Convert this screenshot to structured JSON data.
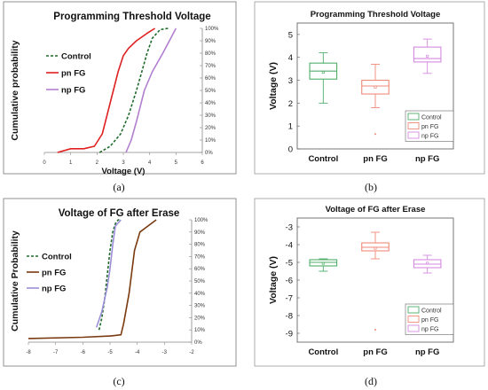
{
  "captions": [
    "(a)",
    "(b)",
    "(c)",
    "(d)"
  ],
  "colors": {
    "control": "#1f6b2c",
    "pn_fg_a": "#e02020",
    "np_fg": "#b27fd0",
    "pn_fg_c": "#7a3a10",
    "np_fg_c": "#9b8fd8",
    "box_control": "#4fae6a",
    "box_pn": "#f08a78",
    "box_np": "#d48ae0"
  },
  "chart_data": [
    {
      "id": "a",
      "type": "line",
      "title": "Programming Threshold Voltage",
      "xlabel": "Voltage (V)",
      "ylabel": "Cumulative probability",
      "xlim": [
        0,
        6
      ],
      "ylim": [
        0,
        100
      ],
      "x_ticks": [
        "0",
        "1",
        "2",
        "3",
        "4",
        "5",
        "6"
      ],
      "y_ticks": [
        "0%",
        "10%",
        "20%",
        "30%",
        "40%",
        "50%",
        "60%",
        "70%",
        "80%",
        "90%",
        "100%"
      ],
      "legend": "top-left",
      "series": [
        {
          "name": "Control",
          "style": "dashed",
          "x": [
            2.1,
            2.5,
            2.9,
            3.2,
            3.5,
            3.7,
            3.9,
            4.1,
            4.4,
            4.7
          ],
          "y": [
            0,
            5,
            15,
            30,
            50,
            65,
            80,
            92,
            99,
            100
          ]
        },
        {
          "name": "pn FG",
          "style": "solid",
          "x": [
            0.5,
            1.0,
            1.5,
            1.9,
            2.2,
            2.5,
            2.8,
            3.0,
            3.2,
            3.5,
            3.9,
            4.2
          ],
          "y": [
            0,
            3,
            3,
            5,
            15,
            40,
            65,
            78,
            84,
            90,
            96,
            100
          ]
        },
        {
          "name": "np FG",
          "style": "solid",
          "x": [
            3.1,
            3.3,
            3.5,
            3.8,
            4.1,
            4.5,
            4.8,
            5.0
          ],
          "y": [
            0,
            10,
            25,
            50,
            65,
            80,
            92,
            100
          ]
        }
      ]
    },
    {
      "id": "b",
      "type": "box",
      "title": "Programming Threshold Voltage",
      "xlabel": "",
      "ylabel": "Voltage (V)",
      "ylim": [
        0,
        5.5
      ],
      "y_ticks": [
        "0",
        "1",
        "2",
        "3",
        "4",
        "5"
      ],
      "categories": [
        "Control",
        "pn FG",
        "np FG"
      ],
      "legend": "bottom-right",
      "boxes": [
        {
          "name": "Control",
          "min": 2.0,
          "q1": 3.05,
          "median": 3.4,
          "mean": 3.35,
          "q3": 3.75,
          "max": 4.2,
          "outliers": []
        },
        {
          "name": "pn FG",
          "min": 1.8,
          "q1": 2.4,
          "median": 2.75,
          "mean": 2.7,
          "q3": 3.0,
          "max": 3.7,
          "outliers": [
            0.65
          ]
        },
        {
          "name": "np FG",
          "min": 3.3,
          "q1": 3.8,
          "median": 3.95,
          "mean": 4.05,
          "q3": 4.45,
          "max": 4.8,
          "outliers": []
        }
      ]
    },
    {
      "id": "c",
      "type": "line",
      "title": "Voltage of FG after Erase",
      "xlabel": "",
      "ylabel": "Cumulative Probability",
      "xlim": [
        -8,
        -2
      ],
      "ylim": [
        0,
        100
      ],
      "x_ticks": [
        "-8",
        "-7",
        "-6",
        "-5",
        "-4",
        "-3",
        "-2"
      ],
      "y_ticks": [
        "0%",
        "10%",
        "20%",
        "30%",
        "40%",
        "50%",
        "60%",
        "70%",
        "80%",
        "90%",
        "100%"
      ],
      "legend": "left",
      "series": [
        {
          "name": "Control",
          "style": "dashed",
          "x": [
            -5.4,
            -5.3,
            -5.2,
            -5.1,
            -5.0,
            -4.9,
            -4.8,
            -4.7,
            -4.6
          ],
          "y": [
            10,
            20,
            35,
            55,
            75,
            90,
            97,
            100,
            100
          ]
        },
        {
          "name": "pn FG",
          "style": "solid",
          "x": [
            -8.0,
            -6.0,
            -5.0,
            -4.6,
            -4.5,
            -4.3,
            -4.1,
            -3.9,
            -3.6,
            -3.3
          ],
          "y": [
            3,
            4,
            5,
            6,
            15,
            40,
            75,
            90,
            95,
            100
          ]
        },
        {
          "name": "np FG",
          "style": "solid",
          "x": [
            -5.5,
            -5.3,
            -5.1,
            -5.0,
            -4.9,
            -4.8,
            -4.6
          ],
          "y": [
            12,
            25,
            45,
            60,
            80,
            95,
            100
          ]
        }
      ]
    },
    {
      "id": "d",
      "type": "box",
      "title": "Voltage of FG after Erase",
      "xlabel": "",
      "ylabel": "Voltage (V)",
      "ylim": [
        -9.5,
        -2.5
      ],
      "y_ticks": [
        "-3",
        "-4",
        "-5",
        "-6",
        "-7",
        "-8",
        "-9"
      ],
      "categories": [
        "Control",
        "pn FG",
        "np FG"
      ],
      "legend": "bottom-right",
      "boxes": [
        {
          "name": "Control",
          "min": -5.5,
          "q1": -5.2,
          "median": -5.0,
          "mean": -5.05,
          "q3": -4.85,
          "max": -4.8,
          "outliers": []
        },
        {
          "name": "pn FG",
          "min": -4.8,
          "q1": -4.35,
          "median": -4.15,
          "mean": -4.2,
          "q3": -3.9,
          "max": -3.3,
          "outliers": [
            -8.8
          ]
        },
        {
          "name": "np FG",
          "min": -5.6,
          "q1": -5.3,
          "median": -5.1,
          "mean": -5.05,
          "q3": -4.85,
          "max": -4.6,
          "outliers": []
        }
      ]
    }
  ]
}
